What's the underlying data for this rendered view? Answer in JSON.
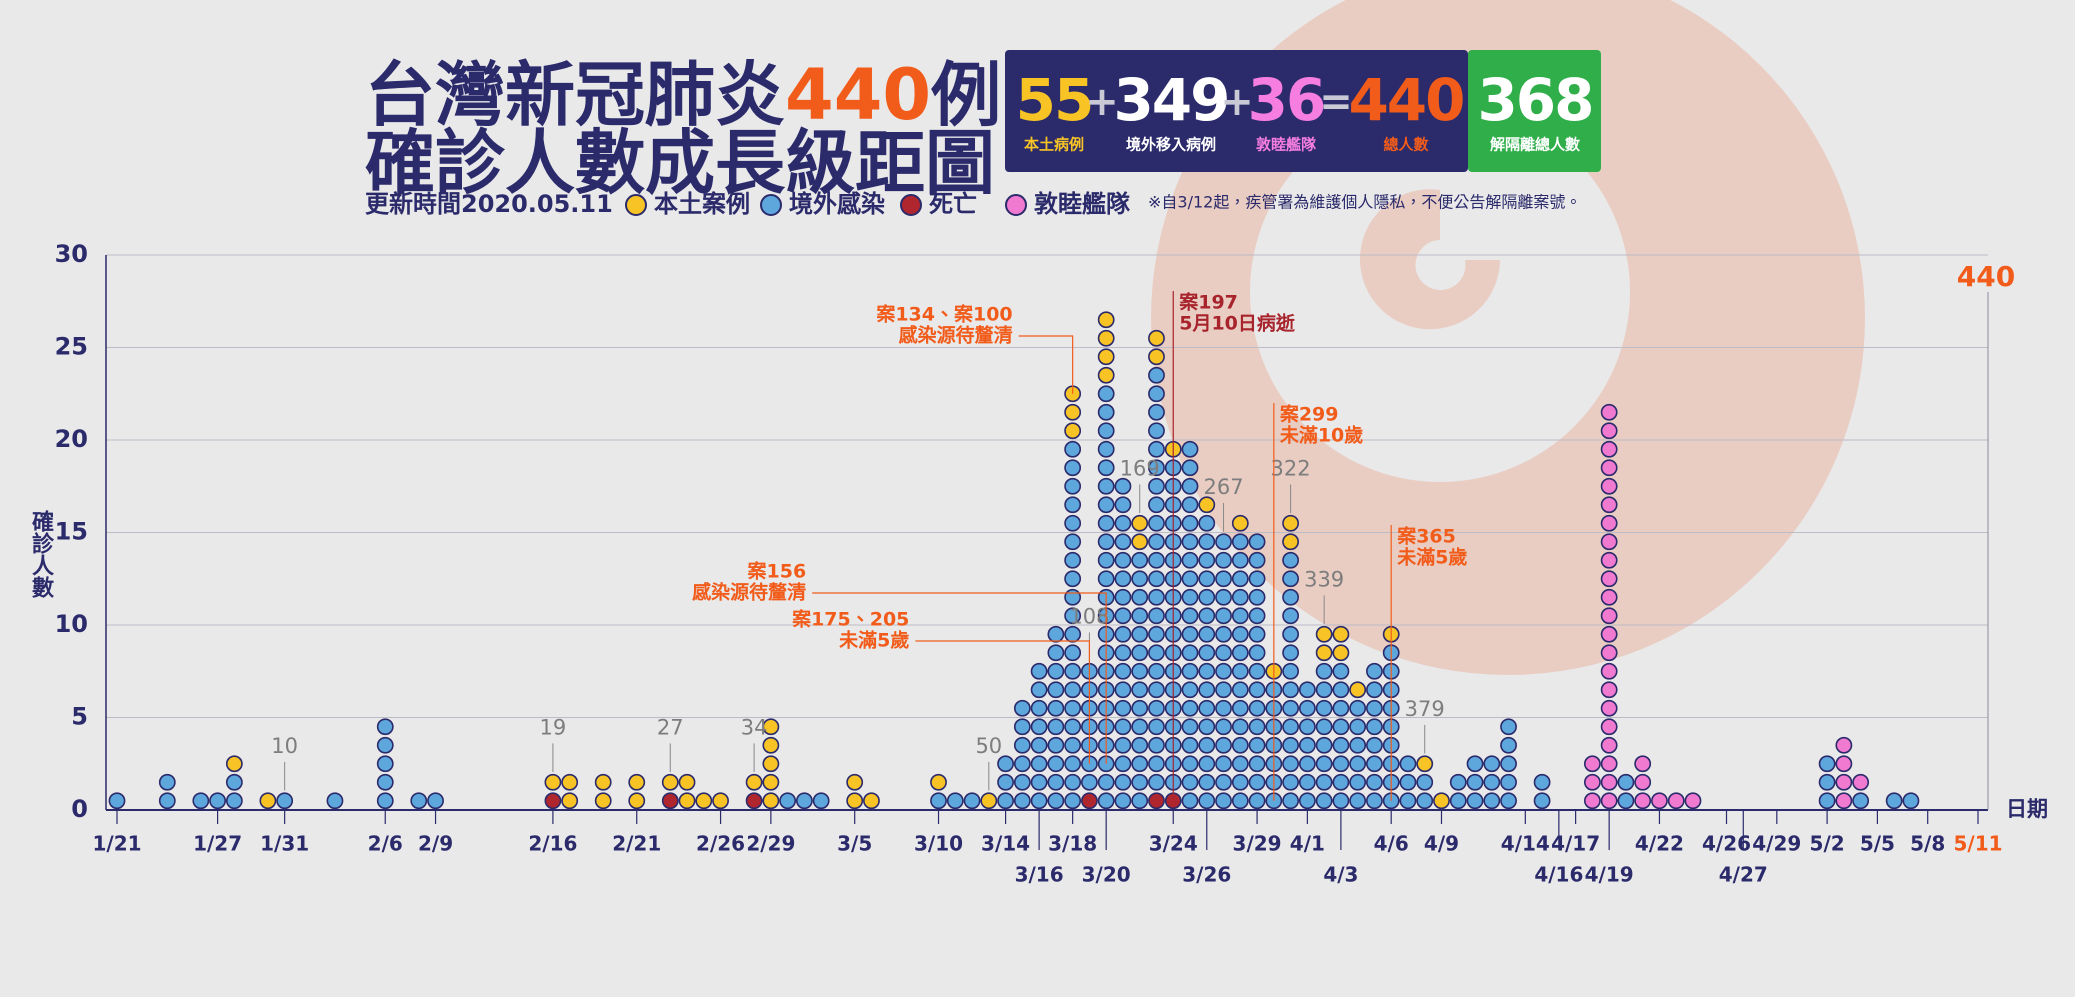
{
  "chart_data": {
    "type": "dot-stack",
    "title": {
      "lead": "台灣新冠肺炎",
      "count": 440,
      "tail": "例"
    },
    "subtitle": "確診人數成長級距圖",
    "updated": "更新時間2020.05.11",
    "note": "※自3/12起，疾管署為維護個人隱私，不便公告解隔離案號。",
    "summary": [
      {
        "value": 55,
        "label": "本土病例",
        "color": "#f7c325"
      },
      {
        "value": 349,
        "label": "境外移入病例",
        "color": "#ffffff"
      },
      {
        "value": 36,
        "label": "敦睦艦隊",
        "color": "#f57ee0"
      },
      {
        "value": 440,
        "label": "總人數",
        "color": "#f25c1b"
      },
      {
        "value": 368,
        "label": "解隔離總人數",
        "color": "#ffffff"
      }
    ],
    "operators": [
      "+",
      "+",
      "="
    ],
    "y_label": "確診人數",
    "x_label": "日期",
    "end_label": 440,
    "categories": [
      "1/21",
      null,
      null,
      null,
      null,
      null,
      "1/27",
      null,
      null,
      null,
      "1/31",
      null,
      null,
      null,
      null,
      null,
      "2/6",
      null,
      null,
      "2/9",
      null,
      null,
      null,
      null,
      null,
      null,
      "2/16",
      null,
      null,
      null,
      null,
      "2/21",
      null,
      null,
      null,
      null,
      "2/26",
      null,
      null,
      "2/29",
      null,
      null,
      null,
      null,
      "3/5",
      null,
      null,
      null,
      null,
      "3/10",
      null,
      null,
      null,
      "3/14",
      null,
      "3/16",
      null,
      "3/18",
      null,
      "3/20",
      null,
      null,
      null,
      "3/24",
      null,
      "3/26",
      null,
      null,
      "3/29",
      null,
      null,
      "4/1",
      null,
      "4/3",
      null,
      null,
      "4/6",
      null,
      null,
      "4/9",
      null,
      null,
      null,
      null,
      "4/14",
      null,
      "4/16",
      "4/17",
      null,
      "4/19",
      null,
      null,
      "4/22",
      null,
      null,
      null,
      "4/26",
      "4/27",
      null,
      "4/29",
      null,
      null,
      "5/2",
      null,
      null,
      "5/5",
      null,
      null,
      "5/8",
      null,
      null,
      "5/11"
    ],
    "series": [
      {
        "name": "本土案例",
        "color": "#f7c325",
        "values": [
          0,
          0,
          0,
          0,
          0,
          0,
          0,
          1,
          0,
          1,
          0,
          0,
          0,
          0,
          0,
          0,
          0,
          0,
          0,
          0,
          0,
          0,
          0,
          0,
          0,
          0,
          1,
          2,
          0,
          2,
          0,
          2,
          0,
          1,
          2,
          1,
          1,
          0,
          1,
          5,
          0,
          0,
          0,
          0,
          2,
          1,
          0,
          0,
          0,
          1,
          0,
          0,
          1,
          0,
          0,
          0,
          0,
          3,
          0,
          4,
          0,
          2,
          2,
          1,
          0,
          1,
          0,
          1,
          0,
          1,
          2,
          0,
          2,
          2,
          1,
          0,
          1,
          0,
          1,
          1,
          0,
          0,
          0,
          0,
          0,
          0,
          0,
          0,
          0,
          0,
          0,
          0,
          0,
          0,
          0,
          0,
          0,
          0,
          0,
          0,
          0,
          0,
          0,
          0,
          0,
          0,
          0,
          0,
          0,
          0,
          0,
          0
        ]
      },
      {
        "name": "境外感染",
        "color": "#5ea7dd",
        "values": [
          1,
          0,
          0,
          2,
          0,
          1,
          1,
          2,
          0,
          0,
          1,
          0,
          0,
          1,
          0,
          0,
          5,
          0,
          1,
          1,
          0,
          0,
          0,
          0,
          0,
          0,
          0,
          0,
          0,
          0,
          0,
          0,
          0,
          0,
          0,
          0,
          0,
          0,
          0,
          0,
          1,
          1,
          1,
          0,
          0,
          0,
          0,
          0,
          0,
          1,
          1,
          1,
          0,
          3,
          6,
          8,
          10,
          20,
          7,
          23,
          18,
          14,
          23,
          18,
          20,
          16,
          15,
          15,
          15,
          7,
          14,
          7,
          8,
          8,
          6,
          8,
          9,
          3,
          2,
          0,
          2,
          3,
          3,
          5,
          0,
          2,
          0,
          0,
          0,
          0,
          2,
          0,
          0,
          0,
          0,
          0,
          0,
          0,
          0,
          0,
          0,
          0,
          3,
          0,
          1,
          0,
          1,
          1,
          0,
          0,
          0,
          0
        ]
      },
      {
        "name": "死亡",
        "color": "#b0262e",
        "values": [
          0,
          0,
          0,
          0,
          0,
          0,
          0,
          0,
          0,
          0,
          0,
          0,
          0,
          0,
          0,
          0,
          0,
          0,
          0,
          0,
          0,
          0,
          0,
          0,
          0,
          0,
          1,
          0,
          0,
          0,
          0,
          0,
          0,
          1,
          0,
          0,
          0,
          0,
          1,
          0,
          0,
          0,
          0,
          0,
          0,
          0,
          0,
          0,
          0,
          0,
          0,
          0,
          0,
          0,
          0,
          0,
          0,
          0,
          1,
          0,
          0,
          0,
          1,
          1,
          0,
          0,
          0,
          0,
          0,
          0,
          0,
          0,
          0,
          0,
          0,
          0,
          0,
          0,
          0,
          0,
          0,
          0,
          0,
          0,
          0,
          0,
          0,
          0,
          0,
          0,
          0,
          0,
          0,
          0,
          0,
          0,
          0,
          0,
          0,
          0,
          0,
          0,
          0,
          0,
          0,
          0,
          0,
          0,
          0,
          0,
          0,
          0
        ]
      },
      {
        "name": "敦睦艦隊",
        "color": "#f07ad0",
        "values": [
          0,
          0,
          0,
          0,
          0,
          0,
          0,
          0,
          0,
          0,
          0,
          0,
          0,
          0,
          0,
          0,
          0,
          0,
          0,
          0,
          0,
          0,
          0,
          0,
          0,
          0,
          0,
          0,
          0,
          0,
          0,
          0,
          0,
          0,
          0,
          0,
          0,
          0,
          0,
          0,
          0,
          0,
          0,
          0,
          0,
          0,
          0,
          0,
          0,
          0,
          0,
          0,
          0,
          0,
          0,
          0,
          0,
          0,
          0,
          0,
          0,
          0,
          0,
          0,
          0,
          0,
          0,
          0,
          0,
          0,
          0,
          0,
          0,
          0,
          0,
          0,
          0,
          0,
          0,
          0,
          0,
          0,
          0,
          0,
          0,
          0,
          0,
          0,
          3,
          22,
          0,
          3,
          1,
          1,
          1,
          0,
          0,
          0,
          0,
          0,
          0,
          0,
          0,
          4,
          1,
          0,
          0,
          0,
          0,
          0,
          0,
          0
        ]
      }
    ],
    "ylim": [
      0,
      30
    ],
    "yticks": [
      0,
      5,
      10,
      15,
      20,
      25,
      30
    ],
    "grid": true,
    "case_labels": [
      10,
      19,
      27,
      34,
      50,
      108,
      169,
      267,
      322,
      339,
      379
    ],
    "callouts": [
      {
        "lines": [
          "案134、案100",
          "感染源待釐清"
        ]
      },
      {
        "lines": [
          "案197",
          "5月10日病逝"
        ]
      },
      {
        "lines": [
          "案299",
          "未滿10歲"
        ]
      },
      {
        "lines": [
          "案365",
          "未滿5歲"
        ]
      },
      {
        "lines": [
          "案156",
          "感染源待釐清"
        ]
      },
      {
        "lines": [
          "案175、205",
          "未滿5歲"
        ]
      }
    ]
  }
}
